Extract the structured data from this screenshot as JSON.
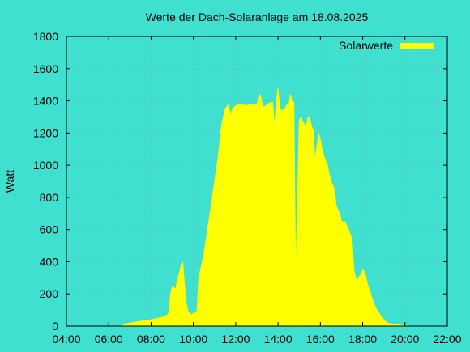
{
  "page": {
    "background": "#40e0d0"
  },
  "chart_data": {
    "type": "area",
    "title": "Werte der Dach-Solaranlage am 18.08.2025",
    "xlabel": "",
    "ylabel": "Watt",
    "xlim": [
      "04:00",
      "22:00"
    ],
    "ylim": [
      0,
      1800
    ],
    "x_ticks": [
      "04:00",
      "06:00",
      "08:00",
      "10:00",
      "12:00",
      "14:00",
      "16:00",
      "18:00",
      "20:00",
      "22:00"
    ],
    "y_ticks": [
      "0",
      "200",
      "400",
      "600",
      "800",
      "1000",
      "1200",
      "1400",
      "1600",
      "1800"
    ],
    "grid": true,
    "legend_position": "top-right",
    "series": [
      {
        "name": "Solarwerte",
        "color": "#ffff00",
        "x": [
          "06:40",
          "07:00",
          "07:30",
          "08:00",
          "08:20",
          "08:40",
          "08:50",
          "08:55",
          "09:00",
          "09:10",
          "09:15",
          "09:20",
          "09:25",
          "09:30",
          "09:35",
          "09:40",
          "09:45",
          "09:50",
          "09:55",
          "10:00",
          "10:10",
          "10:15",
          "10:20",
          "10:25",
          "10:30",
          "10:40",
          "10:50",
          "11:00",
          "11:10",
          "11:20",
          "11:30",
          "11:40",
          "11:45",
          "11:50",
          "11:55",
          "12:00",
          "12:15",
          "12:30",
          "12:45",
          "13:00",
          "13:10",
          "13:15",
          "13:20",
          "13:25",
          "13:30",
          "13:40",
          "13:45",
          "13:50",
          "13:55",
          "14:00",
          "14:05",
          "14:10",
          "14:20",
          "14:25",
          "14:30",
          "14:35",
          "14:40",
          "14:45",
          "14:50",
          "15:00",
          "15:05",
          "15:10",
          "15:20",
          "15:25",
          "15:30",
          "15:35",
          "15:40",
          "15:45",
          "15:50",
          "15:55",
          "16:00",
          "16:05",
          "16:10",
          "16:20",
          "16:30",
          "16:40",
          "16:45",
          "16:50",
          "16:55",
          "17:00",
          "17:10",
          "17:20",
          "17:30",
          "17:35",
          "17:40",
          "17:45",
          "17:50",
          "17:55",
          "18:00",
          "18:05",
          "18:10",
          "18:15",
          "18:20",
          "18:30",
          "18:40",
          "18:50",
          "19:00",
          "19:10",
          "19:20",
          "19:30",
          "19:40",
          "19:50",
          "20:00",
          "20:05"
        ],
        "values": [
          10,
          20,
          30,
          40,
          50,
          60,
          80,
          200,
          250,
          230,
          300,
          330,
          380,
          400,
          250,
          140,
          90,
          80,
          70,
          80,
          90,
          300,
          350,
          400,
          450,
          600,
          750,
          900,
          1050,
          1250,
          1350,
          1380,
          1300,
          1350,
          1360,
          1370,
          1380,
          1370,
          1380,
          1380,
          1440,
          1380,
          1360,
          1370,
          1380,
          1390,
          1390,
          1230,
          1400,
          1480,
          1350,
          1340,
          1350,
          1380,
          1360,
          1440,
          1400,
          1390,
          300,
          1280,
          1300,
          1270,
          1240,
          1300,
          1290,
          1240,
          1220,
          1030,
          1120,
          1200,
          1160,
          1100,
          1060,
          1000,
          900,
          850,
          750,
          720,
          700,
          650,
          650,
          600,
          540,
          350,
          300,
          280,
          310,
          320,
          350,
          340,
          300,
          250,
          220,
          150,
          100,
          70,
          40,
          20,
          15,
          10,
          8,
          5,
          4,
          3
        ]
      }
    ]
  }
}
